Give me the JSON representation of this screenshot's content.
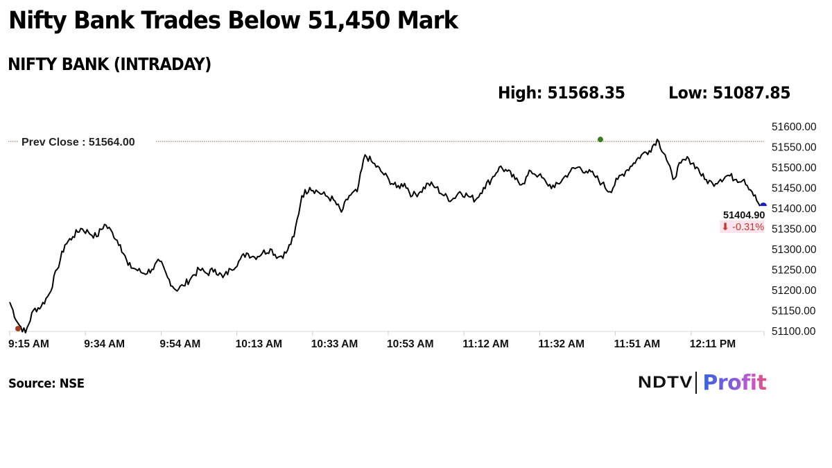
{
  "header": {
    "title": "Nifty Bank Trades Below 51,450 Mark",
    "subtitle": "NIFTY BANK (INTRADAY)",
    "high_label": "High: 51568.35",
    "low_label": "Low: 51087.85"
  },
  "chart": {
    "prev_close_label": "Prev Close : 51564.00",
    "last_value_label": "51404.90",
    "change_label": "⬇ -0.31%",
    "colors": {
      "line": "#000000",
      "prev_close_line": "#8b5a3c",
      "high_marker": "#3a7d1a",
      "low_marker": "#a0401a",
      "last_marker": "#1a1acc",
      "change_text": "#c0392b",
      "change_bg": "#fde4ec"
    }
  },
  "footer": {
    "source": "Source: NSE",
    "logo_left": "NDTV",
    "logo_right": "Profit"
  },
  "chart_data": {
    "type": "line",
    "title": "NIFTY BANK (INTRADAY)",
    "xlabel": "",
    "ylabel": "",
    "ylim": [
      51100,
      51600
    ],
    "y_ticks": [
      "51600.00",
      "51550.00",
      "51500.00",
      "51450.00",
      "51400.00",
      "51350.00",
      "51300.00",
      "51250.00",
      "51200.00",
      "51150.00",
      "51100.00"
    ],
    "x_ticks": [
      "9:15 AM",
      "9:34 AM",
      "9:54 AM",
      "10:13 AM",
      "10:33 AM",
      "10:53 AM",
      "11:12 AM",
      "11:32 AM",
      "11:51 AM",
      "12:11 PM"
    ],
    "grid": false,
    "legend": null,
    "prev_close": 51564.0,
    "high": 51568.35,
    "low": 51087.85,
    "last": 51404.9,
    "change_pct": -0.31,
    "annotations": [
      "Prev Close : 51564.00",
      "51404.90",
      "-0.31%"
    ],
    "series": [
      {
        "name": "NIFTY BANK",
        "x": [
          "9:15",
          "9:16",
          "9:17",
          "9:18",
          "9:20",
          "9:22",
          "9:24",
          "9:26",
          "9:28",
          "9:30",
          "9:32",
          "9:34",
          "9:36",
          "9:38",
          "9:40",
          "9:42",
          "9:44",
          "9:46",
          "9:48",
          "9:50",
          "9:52",
          "9:54",
          "9:56",
          "9:58",
          "10:00",
          "10:02",
          "10:04",
          "10:06",
          "10:08",
          "10:10",
          "10:12",
          "10:14",
          "10:16",
          "10:18",
          "10:20",
          "10:22",
          "10:24",
          "10:26",
          "10:28",
          "10:30",
          "10:32",
          "10:34",
          "10:36",
          "10:38",
          "10:40",
          "10:42",
          "10:44",
          "10:46",
          "10:48",
          "10:50",
          "10:52",
          "10:54",
          "10:56",
          "10:58",
          "11:00",
          "11:02",
          "11:04",
          "11:06",
          "11:08",
          "11:10",
          "11:12",
          "11:14",
          "11:16",
          "11:18",
          "11:20",
          "11:22",
          "11:24",
          "11:26",
          "11:28",
          "11:30",
          "11:32",
          "11:34",
          "11:36",
          "11:38",
          "11:40",
          "11:42",
          "11:44",
          "11:46",
          "11:48",
          "11:50",
          "11:52",
          "11:54",
          "11:56",
          "11:58",
          "12:00",
          "12:02",
          "12:04",
          "12:06",
          "12:08",
          "12:10",
          "12:12",
          "12:14",
          "12:16",
          "12:18",
          "12:20",
          "12:22"
        ],
        "values": [
          51170,
          51120,
          51095,
          51150,
          51160,
          51190,
          51250,
          51310,
          51330,
          51350,
          51340,
          51330,
          51360,
          51340,
          51310,
          51260,
          51250,
          51240,
          51250,
          51270,
          51230,
          51200,
          51210,
          51230,
          51250,
          51240,
          51250,
          51230,
          51250,
          51270,
          51290,
          51280,
          51290,
          51300,
          51280,
          51290,
          51330,
          51430,
          51450,
          51440,
          51430,
          51420,
          51390,
          51430,
          51440,
          51530,
          51510,
          51490,
          51470,
          51450,
          51460,
          51430,
          51440,
          51460,
          51450,
          51430,
          51420,
          51440,
          51430,
          51420,
          51450,
          51470,
          51500,
          51490,
          51470,
          51460,
          51490,
          51480,
          51460,
          51450,
          51470,
          51490,
          51500,
          51490,
          51480,
          51460,
          51440,
          51470,
          51490,
          51510,
          51530,
          51540,
          51568,
          51530,
          51470,
          51510,
          51520,
          51500,
          51470,
          51460,
          51470,
          51480,
          51470,
          51470,
          51440,
          51404.9
        ]
      }
    ]
  }
}
